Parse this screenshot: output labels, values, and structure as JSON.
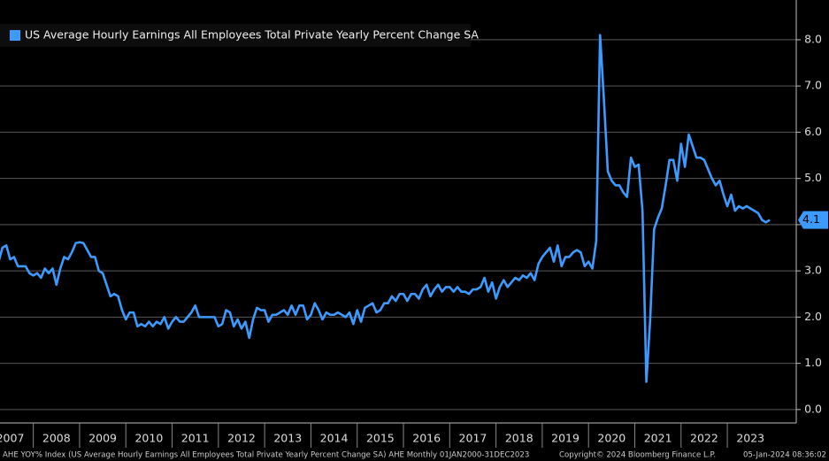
{
  "chart_data": {
    "type": "line",
    "legend_position": "upper left",
    "grid": true,
    "xlim": [
      2007.28,
      2024.49
    ],
    "ylim": [
      -0.29,
      8.86
    ],
    "xticks": [
      2007,
      2008,
      2009,
      2010,
      2011,
      2012,
      2013,
      2014,
      2015,
      2016,
      2017,
      2018,
      2019,
      2020,
      2021,
      2022,
      2023
    ],
    "yticks": [
      {
        "value": 0,
        "label": "0.0"
      },
      {
        "value": 1,
        "label": "1.0"
      },
      {
        "value": 2,
        "label": "2.0"
      },
      {
        "value": 3,
        "label": "3.0"
      },
      {
        "value": 4,
        "label": "4.0"
      },
      {
        "value": 5,
        "label": "5.0"
      },
      {
        "value": 6,
        "label": "6.0"
      },
      {
        "value": 7,
        "label": "7.0"
      },
      {
        "value": 8,
        "label": "8.0"
      }
    ],
    "footer": {
      "description": "AHE YOY% Index (US Average Hourly Earnings All Employees Total Private Yearly Percent Change SA) AHE  Monthly 01JAN2000-31DEC2023",
      "copyright": "Copyright© 2024 Bloomberg Finance L.P.",
      "timestamp": "05-Jan-2024 08:36:02"
    },
    "x": [
      2007.25,
      2007.333,
      2007.417,
      2007.5,
      2007.583,
      2007.667,
      2007.75,
      2007.833,
      2007.917,
      2008.0,
      2008.083,
      2008.167,
      2008.25,
      2008.333,
      2008.417,
      2008.5,
      2008.583,
      2008.667,
      2008.75,
      2008.833,
      2008.917,
      2009.0,
      2009.083,
      2009.167,
      2009.25,
      2009.333,
      2009.417,
      2009.5,
      2009.583,
      2009.667,
      2009.75,
      2009.833,
      2009.917,
      2010.0,
      2010.083,
      2010.167,
      2010.25,
      2010.333,
      2010.417,
      2010.5,
      2010.583,
      2010.667,
      2010.75,
      2010.833,
      2010.917,
      2011.0,
      2011.083,
      2011.167,
      2011.25,
      2011.333,
      2011.417,
      2011.5,
      2011.583,
      2011.667,
      2011.75,
      2011.833,
      2011.917,
      2012.0,
      2012.083,
      2012.167,
      2012.25,
      2012.333,
      2012.417,
      2012.5,
      2012.583,
      2012.667,
      2012.75,
      2012.833,
      2012.917,
      2013.0,
      2013.083,
      2013.167,
      2013.25,
      2013.333,
      2013.417,
      2013.5,
      2013.583,
      2013.667,
      2013.75,
      2013.833,
      2013.917,
      2014.0,
      2014.083,
      2014.167,
      2014.25,
      2014.333,
      2014.417,
      2014.5,
      2014.583,
      2014.667,
      2014.75,
      2014.833,
      2014.917,
      2015.0,
      2015.083,
      2015.167,
      2015.25,
      2015.333,
      2015.417,
      2015.5,
      2015.583,
      2015.667,
      2015.75,
      2015.833,
      2015.917,
      2016.0,
      2016.083,
      2016.167,
      2016.25,
      2016.333,
      2016.417,
      2016.5,
      2016.583,
      2016.667,
      2016.75,
      2016.833,
      2016.917,
      2017.0,
      2017.083,
      2017.167,
      2017.25,
      2017.333,
      2017.417,
      2017.5,
      2017.583,
      2017.667,
      2017.75,
      2017.833,
      2017.917,
      2018.0,
      2018.083,
      2018.167,
      2018.25,
      2018.333,
      2018.417,
      2018.5,
      2018.583,
      2018.667,
      2018.75,
      2018.833,
      2018.917,
      2019.0,
      2019.083,
      2019.167,
      2019.25,
      2019.333,
      2019.417,
      2019.5,
      2019.583,
      2019.667,
      2019.75,
      2019.833,
      2019.917,
      2020.0,
      2020.083,
      2020.167,
      2020.25,
      2020.333,
      2020.417,
      2020.5,
      2020.583,
      2020.667,
      2020.75,
      2020.833,
      2020.917,
      2021.0,
      2021.083,
      2021.167,
      2021.25,
      2021.333,
      2021.417,
      2021.5,
      2021.583,
      2021.667,
      2021.75,
      2021.833,
      2021.917,
      2022.0,
      2022.083,
      2022.167,
      2022.25,
      2022.333,
      2022.417,
      2022.5,
      2022.583,
      2022.667,
      2022.75,
      2022.833,
      2022.917,
      2023.0,
      2023.083,
      2023.167,
      2023.25,
      2023.333,
      2023.417,
      2023.5,
      2023.583,
      2023.667,
      2023.75,
      2023.833,
      2023.917
    ],
    "series": [
      {
        "name": "US Average Hourly Earnings All Employees Total Private Yearly Percent Change SA",
        "color": "#3d9bff",
        "values": [
          3.2,
          3.5,
          3.55,
          3.25,
          3.3,
          3.1,
          3.1,
          3.1,
          2.95,
          2.9,
          2.95,
          2.85,
          3.05,
          2.95,
          3.05,
          2.7,
          3.05,
          3.3,
          3.25,
          3.4,
          3.6,
          3.62,
          3.6,
          3.45,
          3.3,
          3.3,
          3.0,
          2.95,
          2.7,
          2.45,
          2.5,
          2.45,
          2.15,
          1.95,
          2.1,
          2.1,
          1.8,
          1.85,
          1.8,
          1.9,
          1.8,
          1.9,
          1.85,
          2.0,
          1.75,
          1.9,
          2.0,
          1.9,
          1.9,
          2.0,
          2.1,
          2.25,
          2.0,
          2.0,
          2.0,
          2.0,
          2.0,
          1.8,
          1.85,
          2.15,
          2.1,
          1.8,
          1.95,
          1.75,
          1.9,
          1.55,
          1.95,
          2.2,
          2.15,
          2.15,
          1.9,
          2.05,
          2.05,
          2.1,
          2.15,
          2.05,
          2.25,
          2.05,
          2.25,
          2.25,
          1.95,
          2.05,
          2.3,
          2.15,
          1.95,
          2.1,
          2.05,
          2.05,
          2.1,
          2.05,
          2.0,
          2.1,
          1.85,
          2.15,
          1.9,
          2.2,
          2.25,
          2.3,
          2.1,
          2.15,
          2.3,
          2.3,
          2.45,
          2.35,
          2.5,
          2.5,
          2.35,
          2.5,
          2.5,
          2.4,
          2.6,
          2.7,
          2.45,
          2.6,
          2.7,
          2.55,
          2.65,
          2.65,
          2.55,
          2.65,
          2.55,
          2.55,
          2.5,
          2.6,
          2.6,
          2.65,
          2.85,
          2.55,
          2.75,
          2.4,
          2.65,
          2.8,
          2.65,
          2.75,
          2.85,
          2.8,
          2.9,
          2.85,
          2.95,
          2.8,
          3.15,
          3.3,
          3.4,
          3.5,
          3.2,
          3.55,
          3.1,
          3.3,
          3.3,
          3.4,
          3.45,
          3.4,
          3.1,
          3.2,
          3.05,
          3.65,
          8.1,
          6.7,
          5.15,
          4.95,
          4.85,
          4.85,
          4.7,
          4.6,
          5.45,
          5.25,
          5.3,
          4.3,
          0.6,
          1.95,
          3.9,
          4.15,
          4.35,
          4.85,
          5.4,
          5.4,
          4.95,
          5.75,
          5.25,
          5.95,
          5.7,
          5.45,
          5.45,
          5.4,
          5.2,
          5.0,
          4.85,
          4.95,
          4.65,
          4.4,
          4.65,
          4.3,
          4.4,
          4.35,
          4.4,
          4.35,
          4.3,
          4.25,
          4.1,
          4.05,
          4.1
        ]
      }
    ]
  }
}
